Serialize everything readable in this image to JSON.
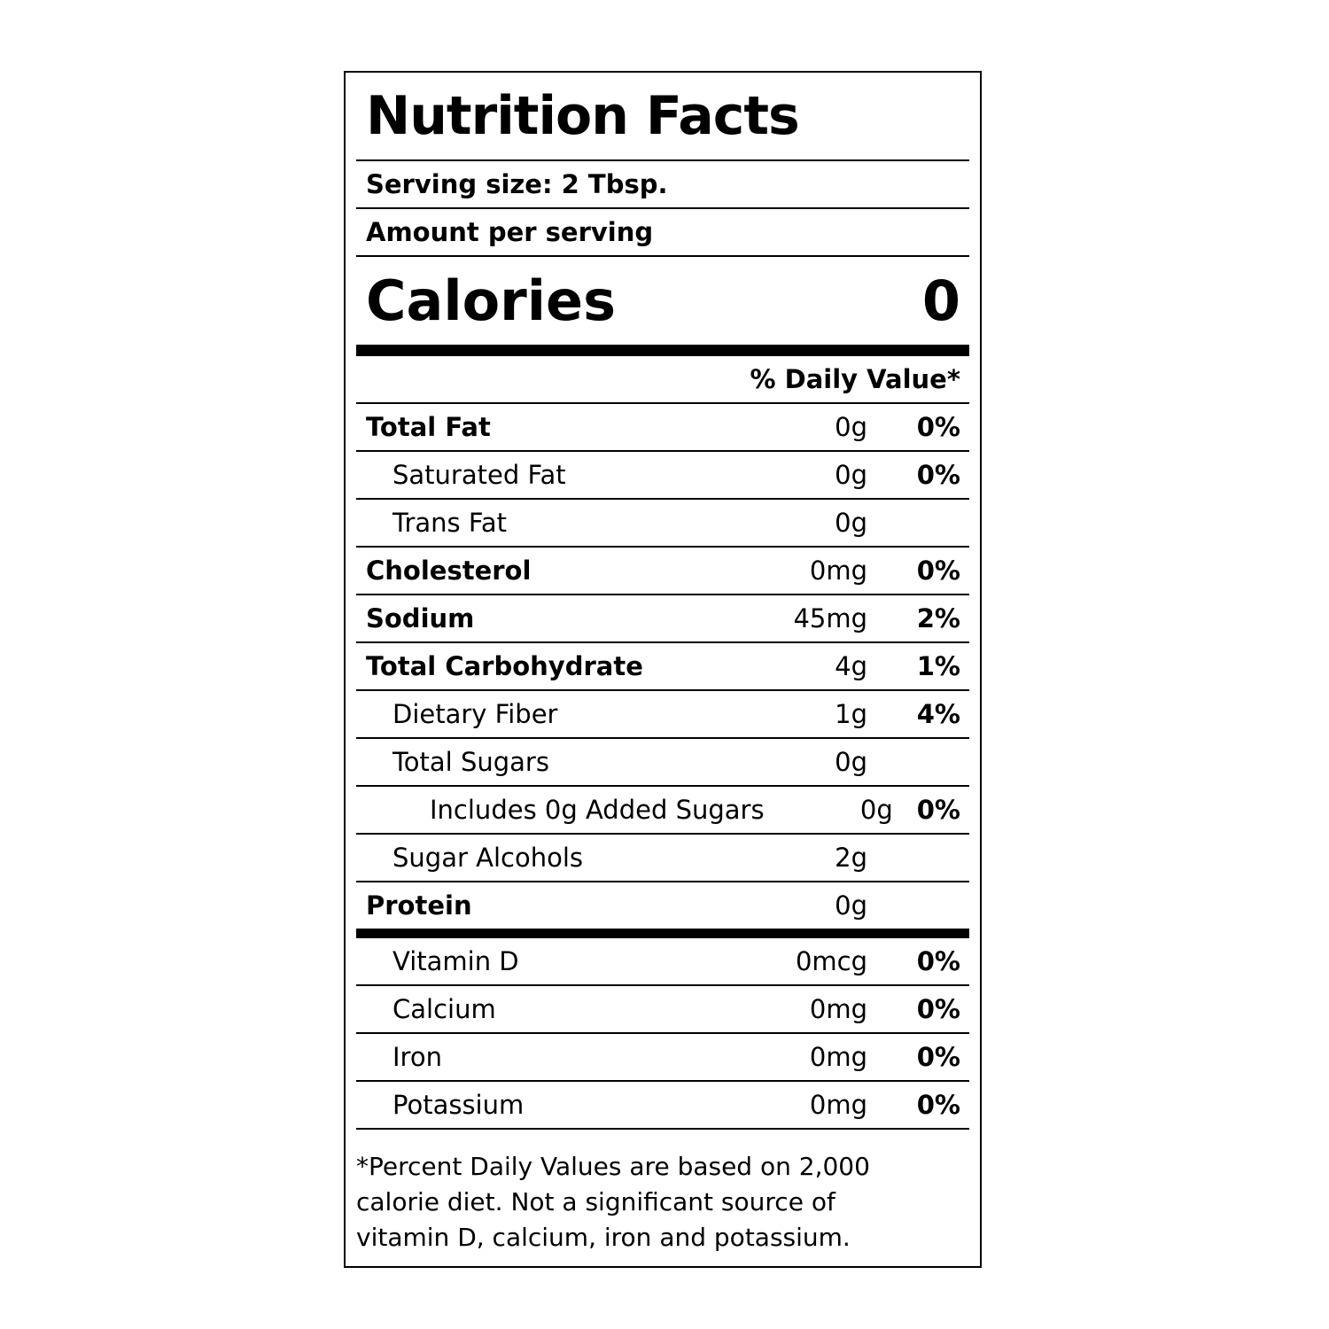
{
  "title": "Nutrition Facts",
  "serving_size": "Serving size: 2 Tbsp.",
  "amount_per_serving": "Amount per serving",
  "calories": {
    "label": "Calories",
    "value": 0
  },
  "daily_value_header": "% Daily Value*",
  "nutrients": [
    {
      "name": "Total Fat",
      "amount": "0g",
      "dv": "0%"
    },
    {
      "name": "Saturated Fat",
      "amount": "0g",
      "dv": "0%"
    },
    {
      "name": "Trans Fat",
      "amount": "0g"
    },
    {
      "name": "Cholesterol",
      "amount": "0mg",
      "dv": "0%"
    },
    {
      "name": "Sodium",
      "amount": "45mg",
      "dv": "2%"
    },
    {
      "name": "Total Carbohydrate",
      "amount": "4g",
      "dv": "1%"
    },
    {
      "name": "Dietary Fiber",
      "amount": "1g",
      "dv": "4%"
    },
    {
      "name": "Total Sugars",
      "amount": "0g"
    },
    {
      "name": "Includes 0g Added Sugars",
      "amount": "0g",
      "dv": "0%"
    },
    {
      "name": "Sugar Alcohols",
      "amount": "2g"
    },
    {
      "name": "Protein",
      "amount": "0g"
    }
  ],
  "vitamins": [
    {
      "name": "Vitamin D",
      "amount": "0mcg",
      "dv": "0%"
    },
    {
      "name": "Calcium",
      "amount": "0mg",
      "dv": "0%"
    },
    {
      "name": "Iron",
      "amount": "0mg",
      "dv": "0%"
    },
    {
      "name": "Potassium",
      "amount": "0mg",
      "dv": "0%"
    }
  ],
  "footnote": "*Percent Daily Values are based on 2,000 calorie diet. Not a significant source of vitamin D, calcium, iron and potassium."
}
